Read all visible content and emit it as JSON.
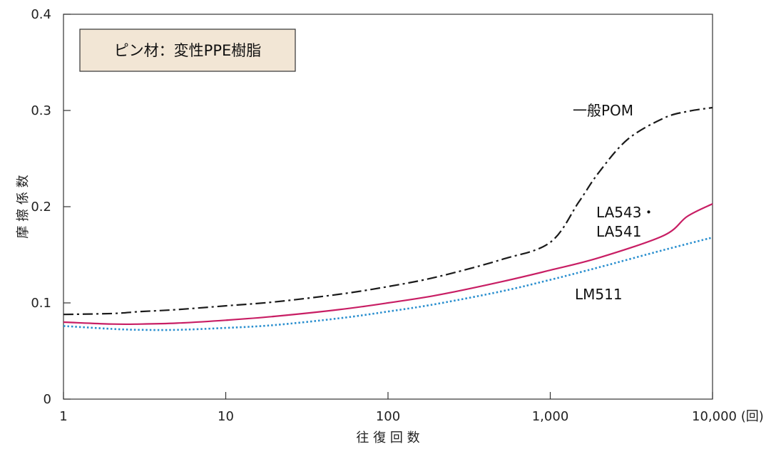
{
  "chart_data": {
    "type": "line",
    "x_scale": "log",
    "xlim": [
      1,
      10000
    ],
    "ylim": [
      0,
      0.4
    ],
    "grid": false,
    "note": "ピン材：変性PPE樹脂",
    "xlabel": "往 復 回 数",
    "ylabel": "摩 擦 係 数",
    "x_ticks": [
      1,
      10,
      100,
      1000,
      10000
    ],
    "x_tick_labels": [
      "1",
      "10",
      "100",
      "1,000",
      "10,000 (回)"
    ],
    "y_ticks": [
      0,
      0.1,
      0.2,
      0.3,
      0.4
    ],
    "y_tick_labels": [
      "0",
      "0.1",
      "0.2",
      "0.3",
      "0.4"
    ],
    "series": [
      {
        "name": "一般POM",
        "color": "#1a1a1a",
        "style": "dashdot",
        "x": [
          1,
          2,
          3,
          5,
          10,
          20,
          50,
          100,
          200,
          500,
          1000,
          1500,
          2000,
          3000,
          5000,
          7000,
          10000
        ],
        "y": [
          0.088,
          0.089,
          0.091,
          0.093,
          0.097,
          0.101,
          0.109,
          0.117,
          0.127,
          0.145,
          0.163,
          0.205,
          0.236,
          0.27,
          0.292,
          0.299,
          0.303
        ]
      },
      {
        "name": "LA543・LA541",
        "color": "#c81e64",
        "style": "solid",
        "x": [
          1,
          2,
          3,
          5,
          10,
          20,
          50,
          100,
          200,
          500,
          1000,
          2000,
          5000,
          7000,
          10000
        ],
        "y": [
          0.08,
          0.078,
          0.078,
          0.079,
          0.082,
          0.086,
          0.093,
          0.1,
          0.108,
          0.122,
          0.134,
          0.147,
          0.17,
          0.19,
          0.203
        ]
      },
      {
        "name": "LM511",
        "color": "#2a8fcf",
        "style": "dotted",
        "x": [
          1,
          2,
          3,
          5,
          10,
          20,
          50,
          100,
          200,
          500,
          1000,
          2000,
          5000,
          10000
        ],
        "y": [
          0.076,
          0.073,
          0.072,
          0.072,
          0.074,
          0.077,
          0.084,
          0.091,
          0.099,
          0.112,
          0.124,
          0.137,
          0.155,
          0.168
        ]
      }
    ]
  }
}
